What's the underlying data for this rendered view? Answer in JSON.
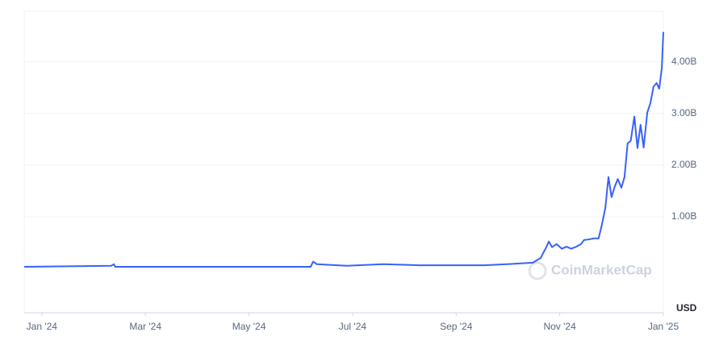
{
  "chart_data": {
    "type": "line",
    "watermark": "CoinMarketCap",
    "currency": "USD",
    "xlim": [
      -0.34,
      12
    ],
    "xticks": [
      {
        "value": 0,
        "label": "Jan '24"
      },
      {
        "value": 2,
        "label": "Mar '24"
      },
      {
        "value": 4,
        "label": "May '24"
      },
      {
        "value": 6,
        "label": "Jul '24"
      },
      {
        "value": 8,
        "label": "Sep '24"
      },
      {
        "value": 10,
        "label": "Nov '24"
      },
      {
        "value": 12,
        "label": "Jan '25"
      }
    ],
    "ylim": [
      -0.86,
      4.98
    ],
    "yticks": [
      {
        "value": 1,
        "label": "1.00B"
      },
      {
        "value": 2,
        "label": "2.00B"
      },
      {
        "value": 3,
        "label": "3.00B"
      },
      {
        "value": 4,
        "label": "4.00B"
      }
    ],
    "grid": true,
    "series": [
      {
        "color": "#3861fb",
        "x": [
          -0.34,
          1.34,
          1.39,
          1.42,
          5.19,
          5.24,
          5.31,
          5.89,
          6.59,
          7.29,
          8.54,
          9.16,
          9.48,
          9.63,
          9.73,
          9.79,
          9.85,
          9.94,
          10.04,
          10.13,
          10.22,
          10.32,
          10.41,
          10.47,
          10.56,
          10.66,
          10.75,
          10.81,
          10.88,
          10.94,
          11.0,
          11.06,
          11.12,
          11.19,
          11.25,
          11.31,
          11.37,
          11.44,
          11.5,
          11.56,
          11.62,
          11.69,
          11.75,
          11.81,
          11.87,
          11.92,
          11.97,
          12.0
        ],
        "values": [
          0.03,
          0.05,
          0.08,
          0.03,
          0.03,
          0.13,
          0.08,
          0.05,
          0.08,
          0.06,
          0.06,
          0.09,
          0.11,
          0.2,
          0.39,
          0.52,
          0.41,
          0.47,
          0.38,
          0.42,
          0.38,
          0.42,
          0.47,
          0.55,
          0.56,
          0.58,
          0.58,
          0.83,
          1.17,
          1.77,
          1.38,
          1.58,
          1.73,
          1.56,
          1.77,
          2.42,
          2.47,
          2.94,
          2.33,
          2.78,
          2.34,
          3.02,
          3.2,
          3.52,
          3.59,
          3.48,
          3.88,
          4.58
        ]
      }
    ]
  }
}
